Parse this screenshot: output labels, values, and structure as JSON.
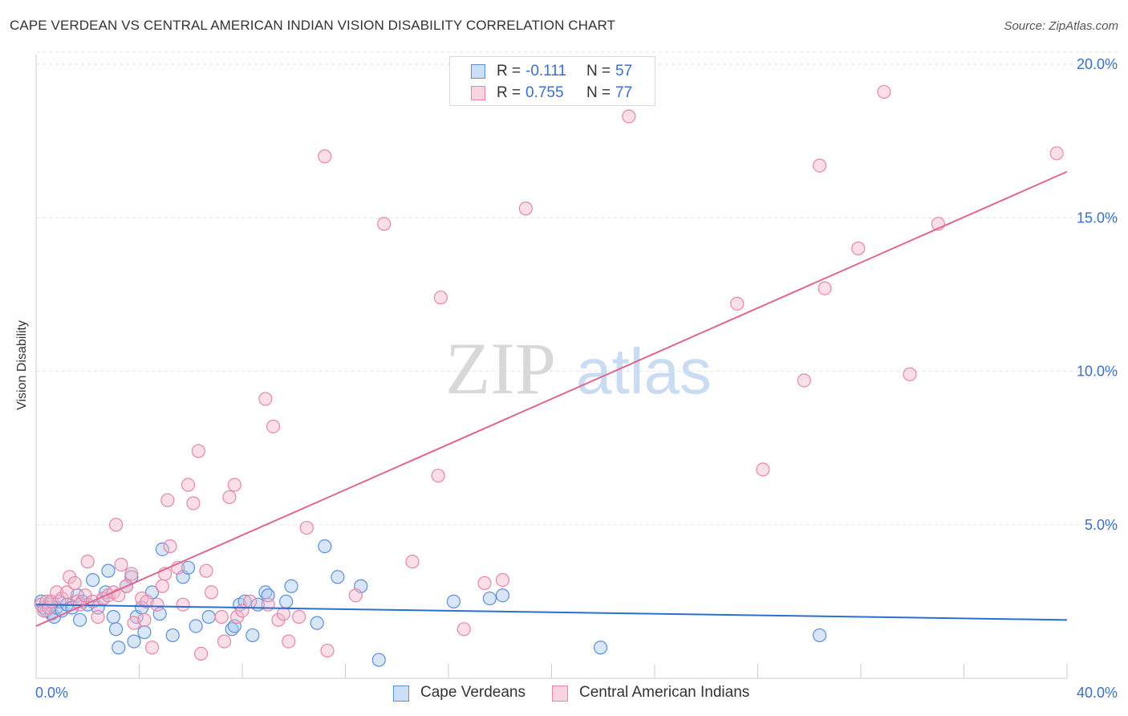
{
  "title": "CAPE VERDEAN VS CENTRAL AMERICAN INDIAN VISION DISABILITY CORRELATION CHART",
  "source": "Source: ZipAtlas.com",
  "watermark": {
    "zip": "ZIP",
    "atlas": "atlas"
  },
  "legend_top": {
    "rows": [
      {
        "r_label": "R =",
        "r_value": "-0.111",
        "n_label": "N =",
        "n_value": "57",
        "color": "#a9c8f0"
      },
      {
        "r_label": "R =",
        "r_value": "0.755",
        "n_label": "N =",
        "n_value": "77",
        "color": "#f5b8cb"
      }
    ]
  },
  "legend_bottom": {
    "items": [
      {
        "label": "Cape Verdeans",
        "color": "#a9c8f0"
      },
      {
        "label": "Central American Indians",
        "color": "#f5b8cb"
      }
    ]
  },
  "chart_data": {
    "type": "scatter",
    "title": "CAPE VERDEAN VS CENTRAL AMERICAN INDIAN VISION DISABILITY CORRELATION CHART",
    "xlabel": "",
    "ylabel": "Vision Disability",
    "xlim": [
      0,
      40
    ],
    "ylim": [
      0,
      20
    ],
    "x_tick_labels": [
      {
        "value": 0,
        "label": "0.0%"
      },
      {
        "value": 40,
        "label": "40.0%"
      }
    ],
    "y_tick_labels": [
      {
        "value": 5,
        "label": "5.0%"
      },
      {
        "value": 10,
        "label": "10.0%"
      },
      {
        "value": 15,
        "label": "15.0%"
      },
      {
        "value": 20,
        "label": "20.0%"
      }
    ],
    "grid": true,
    "series": [
      {
        "name": "Cape Verdeans",
        "color": "#a9c8f0",
        "stroke": "#5b8fd8",
        "trend": {
          "x": [
            0,
            40
          ],
          "y": [
            2.4,
            1.9
          ],
          "color": "#2b6fcf"
        },
        "points": [
          [
            0.2,
            2.5
          ],
          [
            0.3,
            2.3
          ],
          [
            0.4,
            2.2
          ],
          [
            0.5,
            2.4
          ],
          [
            0.6,
            2.1
          ],
          [
            0.7,
            2.0
          ],
          [
            0.8,
            2.3
          ],
          [
            0.9,
            2.5
          ],
          [
            1.0,
            2.2
          ],
          [
            1.2,
            2.4
          ],
          [
            1.4,
            2.3
          ],
          [
            1.6,
            2.7
          ],
          [
            1.7,
            1.9
          ],
          [
            1.8,
            2.5
          ],
          [
            2.0,
            2.4
          ],
          [
            2.2,
            3.2
          ],
          [
            2.4,
            2.3
          ],
          [
            2.6,
            2.6
          ],
          [
            2.7,
            2.8
          ],
          [
            2.8,
            3.5
          ],
          [
            3.0,
            2.0
          ],
          [
            3.1,
            1.6
          ],
          [
            3.2,
            1.0
          ],
          [
            3.5,
            3.0
          ],
          [
            3.7,
            3.3
          ],
          [
            3.8,
            1.2
          ],
          [
            3.9,
            2.0
          ],
          [
            4.1,
            2.3
          ],
          [
            4.2,
            1.5
          ],
          [
            4.5,
            2.8
          ],
          [
            4.8,
            2.1
          ],
          [
            4.9,
            4.2
          ],
          [
            5.3,
            1.4
          ],
          [
            5.7,
            3.3
          ],
          [
            5.9,
            3.6
          ],
          [
            6.2,
            1.7
          ],
          [
            6.7,
            2.0
          ],
          [
            7.6,
            1.6
          ],
          [
            7.7,
            1.7
          ],
          [
            7.9,
            2.4
          ],
          [
            8.1,
            2.5
          ],
          [
            8.4,
            1.4
          ],
          [
            8.6,
            2.4
          ],
          [
            8.9,
            2.8
          ],
          [
            9.0,
            2.7
          ],
          [
            9.7,
            2.5
          ],
          [
            9.9,
            3.0
          ],
          [
            10.9,
            1.8
          ],
          [
            11.2,
            4.3
          ],
          [
            11.7,
            3.3
          ],
          [
            12.6,
            3.0
          ],
          [
            13.3,
            0.6
          ],
          [
            16.2,
            2.5
          ],
          [
            17.6,
            2.6
          ],
          [
            18.1,
            2.7
          ],
          [
            21.9,
            1.0
          ],
          [
            30.4,
            1.4
          ]
        ]
      },
      {
        "name": "Central American Indians",
        "color": "#f5b8cb",
        "stroke": "#e885a5",
        "trend": {
          "x": [
            0,
            40
          ],
          "y": [
            1.7,
            16.5
          ],
          "color": "#e0668f"
        },
        "points": [
          [
            0.2,
            2.4
          ],
          [
            0.3,
            2.2
          ],
          [
            0.4,
            2.5
          ],
          [
            0.5,
            2.3
          ],
          [
            0.6,
            2.5
          ],
          [
            0.8,
            2.8
          ],
          [
            1.0,
            2.6
          ],
          [
            1.2,
            2.8
          ],
          [
            1.3,
            3.3
          ],
          [
            1.5,
            3.1
          ],
          [
            1.6,
            2.5
          ],
          [
            1.7,
            2.4
          ],
          [
            1.9,
            2.7
          ],
          [
            2.0,
            3.8
          ],
          [
            2.2,
            2.5
          ],
          [
            2.4,
            2.0
          ],
          [
            2.6,
            2.6
          ],
          [
            2.8,
            2.7
          ],
          [
            3.0,
            2.8
          ],
          [
            3.2,
            2.7
          ],
          [
            3.1,
            5.0
          ],
          [
            3.3,
            3.7
          ],
          [
            3.5,
            3.0
          ],
          [
            3.7,
            3.4
          ],
          [
            3.8,
            1.8
          ],
          [
            4.1,
            2.6
          ],
          [
            4.2,
            1.9
          ],
          [
            4.3,
            2.5
          ],
          [
            4.5,
            1.0
          ],
          [
            4.7,
            2.4
          ],
          [
            4.9,
            3.0
          ],
          [
            5.0,
            3.4
          ],
          [
            5.1,
            5.8
          ],
          [
            5.2,
            4.3
          ],
          [
            5.5,
            3.6
          ],
          [
            5.7,
            2.4
          ],
          [
            5.9,
            6.3
          ],
          [
            6.1,
            5.7
          ],
          [
            6.3,
            7.4
          ],
          [
            6.4,
            0.8
          ],
          [
            6.6,
            3.5
          ],
          [
            6.8,
            2.8
          ],
          [
            7.2,
            2.0
          ],
          [
            7.3,
            1.2
          ],
          [
            7.5,
            5.9
          ],
          [
            7.7,
            6.3
          ],
          [
            7.8,
            2.0
          ],
          [
            8.0,
            2.2
          ],
          [
            8.3,
            2.5
          ],
          [
            8.9,
            9.1
          ],
          [
            9.0,
            2.4
          ],
          [
            9.2,
            8.2
          ],
          [
            9.4,
            1.9
          ],
          [
            9.6,
            2.1
          ],
          [
            9.8,
            1.2
          ],
          [
            10.2,
            2.0
          ],
          [
            10.5,
            4.9
          ],
          [
            11.2,
            17.0
          ],
          [
            11.3,
            0.9
          ],
          [
            12.4,
            2.7
          ],
          [
            13.5,
            14.8
          ],
          [
            14.6,
            3.8
          ],
          [
            15.6,
            6.6
          ],
          [
            15.7,
            12.4
          ],
          [
            16.6,
            1.6
          ],
          [
            17.4,
            3.1
          ],
          [
            18.1,
            3.2
          ],
          [
            19.0,
            15.3
          ],
          [
            23.0,
            18.3
          ],
          [
            27.2,
            12.2
          ],
          [
            28.2,
            6.8
          ],
          [
            29.8,
            9.7
          ],
          [
            30.4,
            16.7
          ],
          [
            30.6,
            12.7
          ],
          [
            31.9,
            14.0
          ],
          [
            32.9,
            19.1
          ],
          [
            33.9,
            9.9
          ],
          [
            35.0,
            14.8
          ],
          [
            39.6,
            17.1
          ]
        ]
      }
    ]
  }
}
